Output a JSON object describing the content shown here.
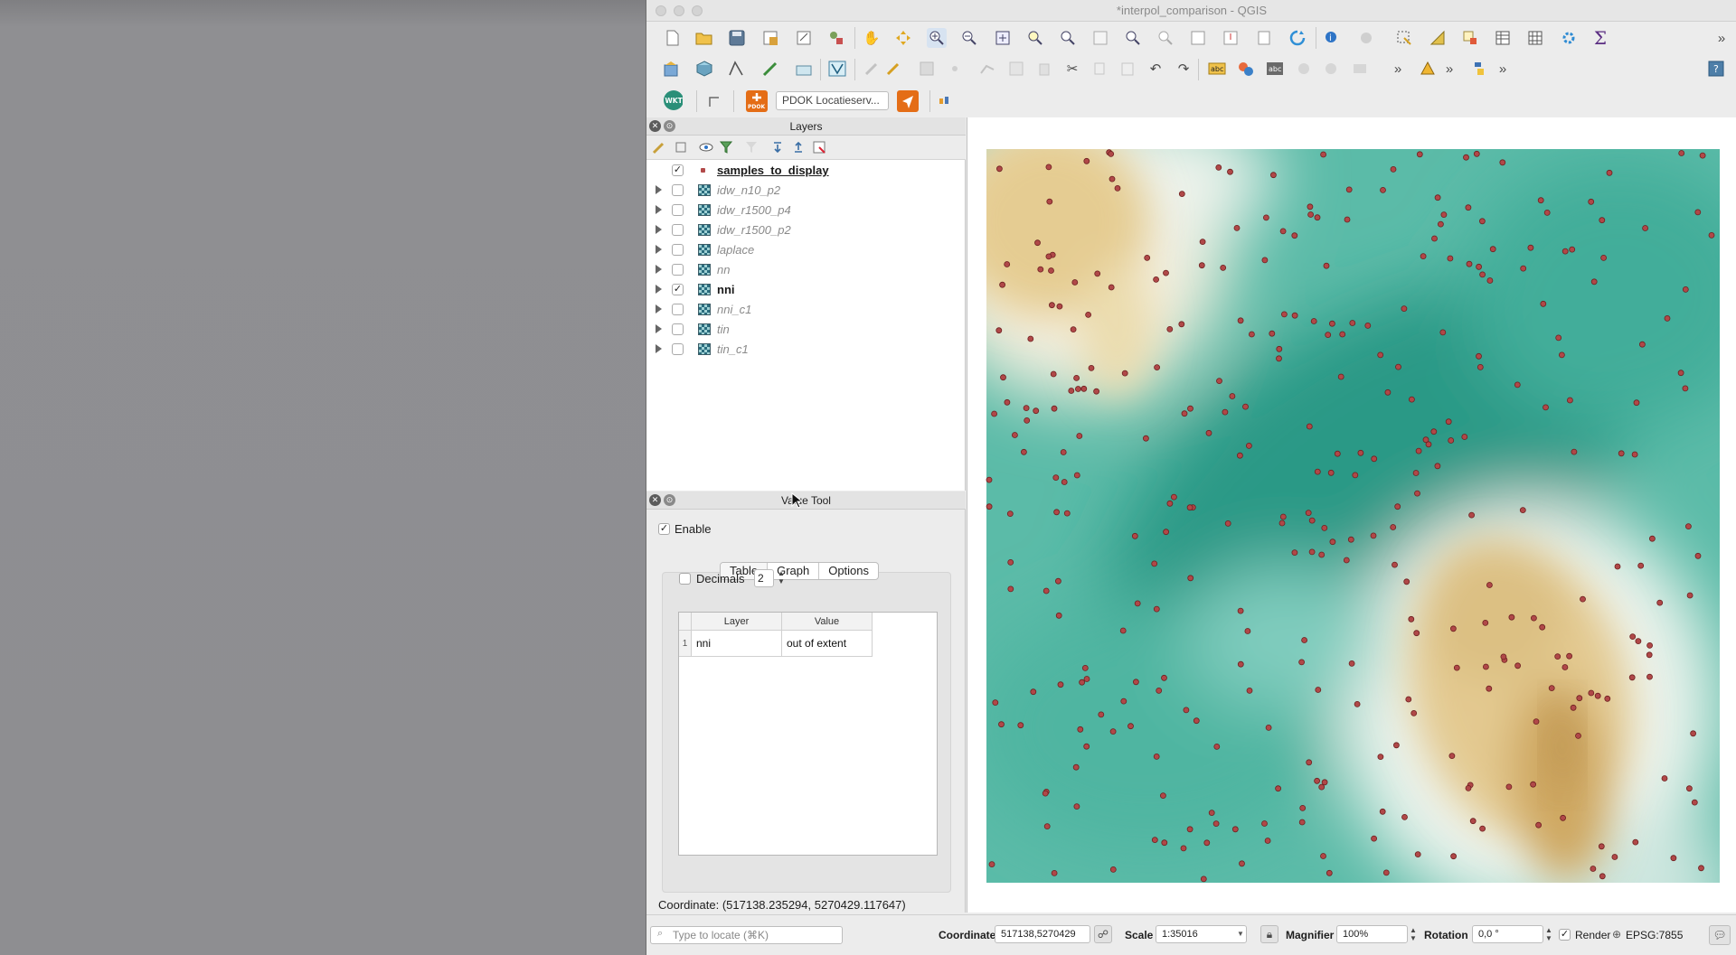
{
  "window": {
    "title": "*interpol_comparison - QGIS"
  },
  "locator_toolbar": {
    "wkt_label": "WKT",
    "pdok_label": "PDOK",
    "pdok_search_value": "PDOK Locatieserv..."
  },
  "layers_panel": {
    "title": "Layers",
    "layers": [
      {
        "name": "samples_to_display",
        "checked": true,
        "type": "point"
      },
      {
        "name": "idw_n10_p2",
        "checked": false,
        "type": "raster"
      },
      {
        "name": "idw_r1500_p4",
        "checked": false,
        "type": "raster"
      },
      {
        "name": "idw_r1500_p2",
        "checked": false,
        "type": "raster"
      },
      {
        "name": "laplace",
        "checked": false,
        "type": "raster"
      },
      {
        "name": "nn",
        "checked": false,
        "type": "raster"
      },
      {
        "name": "nni",
        "checked": true,
        "type": "raster"
      },
      {
        "name": "nni_c1",
        "checked": false,
        "type": "raster"
      },
      {
        "name": "tin",
        "checked": false,
        "type": "raster"
      },
      {
        "name": "tin_c1",
        "checked": false,
        "type": "raster"
      }
    ]
  },
  "value_tool": {
    "title": "Value Tool",
    "enable_label": "Enable",
    "enable_checked": true,
    "tabs": [
      "Table",
      "Graph",
      "Options"
    ],
    "decimals_label": "Decimals",
    "decimals_value": "2",
    "table": {
      "headers": [
        "Layer",
        "Value"
      ],
      "rows": [
        {
          "num": "1",
          "layer": "nni",
          "value": "out of extent"
        }
      ]
    },
    "coordinate_label": "Coordinate: (517138.235294, 5270429.117647)"
  },
  "status_bar": {
    "locate_placeholder": "Type to locate (⌘K)",
    "coordinate_label": "Coordinate",
    "coordinate_value": "517138,5270429",
    "scale_label": "Scale",
    "scale_value": "1:35016",
    "magnifier_label": "Magnifier",
    "magnifier_value": "100%",
    "rotation_label": "Rotation",
    "rotation_value": "0,0 °",
    "render_label": "Render",
    "render_checked": true,
    "crs_value": "EPSG:7855"
  },
  "colors": {
    "map_teal": "#2e9f8d",
    "map_tan": "#d8b773",
    "sample_point": "#b04848"
  }
}
